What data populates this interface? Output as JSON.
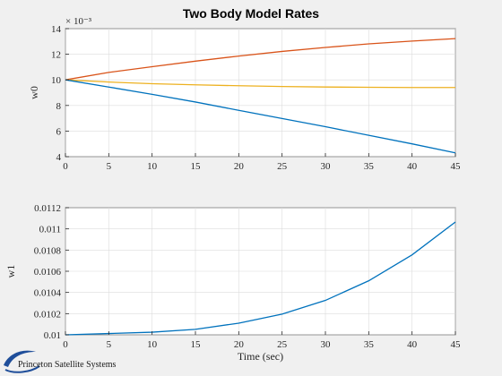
{
  "figure": {
    "title": "Two Body Model Rates",
    "logo_text": "Princeton Satellite Systems"
  },
  "colors": {
    "background": "#f0f0f0",
    "series_blue": "#0072bd",
    "series_orange": "#d95319",
    "series_yellow": "#edb120",
    "logo_blue": "#1f4e9a"
  },
  "chart_data": [
    {
      "type": "line",
      "title": "Two Body Model Rates",
      "xlabel": "",
      "ylabel": "w0",
      "exponent_label": "× 10⁻³",
      "xlim": [
        0,
        45
      ],
      "ylim": [
        0.004,
        0.014
      ],
      "grid": true,
      "x": [
        0,
        5,
        10,
        15,
        20,
        25,
        30,
        35,
        40,
        45
      ],
      "xticks": [
        0,
        5,
        10,
        15,
        20,
        25,
        30,
        35,
        40,
        45
      ],
      "yticks": [
        0.004,
        0.006,
        0.008,
        0.01,
        0.012,
        0.014
      ],
      "ytick_labels": [
        "4",
        "6",
        "8",
        "10",
        "12",
        "14"
      ],
      "series": [
        {
          "color": "#d95319",
          "values": [
            0.01,
            0.01058,
            0.01103,
            0.01146,
            0.01186,
            0.01222,
            0.01253,
            0.01281,
            0.01303,
            0.01322
          ]
        },
        {
          "color": "#edb120",
          "values": [
            0.01,
            0.00983,
            0.0097,
            0.00961,
            0.00954,
            0.00948,
            0.00944,
            0.00942,
            0.0094,
            0.0094
          ]
        },
        {
          "color": "#0072bd",
          "values": [
            0.01,
            0.00944,
            0.00887,
            0.00827,
            0.00762,
            0.00698,
            0.00634,
            0.00567,
            0.005,
            0.0043
          ]
        }
      ]
    },
    {
      "type": "line",
      "xlabel": "Time (sec)",
      "ylabel": "w1",
      "xlim": [
        0,
        45
      ],
      "ylim": [
        0.01,
        0.0112
      ],
      "grid": true,
      "x": [
        0,
        5,
        10,
        15,
        20,
        25,
        30,
        35,
        40,
        45
      ],
      "xticks": [
        0,
        5,
        10,
        15,
        20,
        25,
        30,
        35,
        40,
        45
      ],
      "yticks": [
        0.01,
        0.0102,
        0.0104,
        0.0106,
        0.0108,
        0.011,
        0.0112
      ],
      "ytick_labels": [
        "0.01",
        "0.0102",
        "0.0104",
        "0.0106",
        "0.0108",
        "0.011",
        "0.0112"
      ],
      "series": [
        {
          "color": "#0072bd",
          "values": [
            0.01,
            0.010012,
            0.010025,
            0.010052,
            0.01011,
            0.010195,
            0.010325,
            0.01051,
            0.010755,
            0.011065
          ]
        }
      ]
    }
  ]
}
